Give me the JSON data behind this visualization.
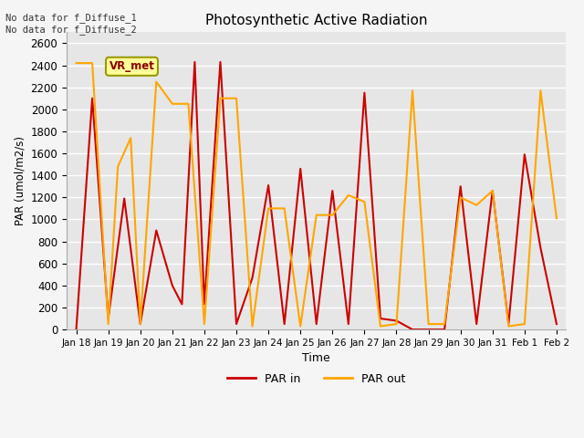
{
  "title": "Photosynthetic Active Radiation",
  "xlabel": "Time",
  "ylabel": "PAR (umol/m2/s)",
  "annotation_text": "No data for f_Diffuse_1\nNo data for f_Diffuse_2",
  "legend_label1": "PAR in",
  "legend_label2": "PAR out",
  "legend_box_label": "VR_met",
  "color_par_in": "#CC0000",
  "color_par_out": "#FFA500",
  "legend_box_facecolor": "#FFFF99",
  "legend_box_edgecolor": "#999900",
  "ylim": [
    0,
    2700
  ],
  "yticks": [
    0,
    200,
    400,
    600,
    800,
    1000,
    1200,
    1400,
    1600,
    1800,
    2000,
    2200,
    2400,
    2600
  ],
  "x_tick_labels": [
    "Jan 18",
    "Jan 19",
    "Jan 20",
    "Jan 21",
    "Jan 22",
    "Jan 23",
    "Jan 24",
    "Jan 25",
    "Jan 26",
    "Jan 27",
    "Jan 28",
    "Jan 29",
    "Jan 30",
    "Jan 31",
    "Feb 1",
    "Feb 2"
  ],
  "par_in_x": [
    0,
    0.5,
    1,
    1.5,
    2,
    2.5,
    3,
    3.3,
    3.7,
    4,
    4.5,
    5,
    5.5,
    6,
    6.5,
    7,
    7.5,
    8,
    8.5,
    9,
    9.5,
    10,
    10.5,
    11,
    11.5,
    12,
    12.5,
    13,
    13.5,
    14,
    14.5,
    15
  ],
  "par_in_y": [
    0,
    2100,
    100,
    1190,
    50,
    900,
    400,
    230,
    2430,
    230,
    2430,
    50,
    470,
    1310,
    50,
    1460,
    50,
    1260,
    50,
    2150,
    100,
    80,
    0,
    0,
    0,
    1300,
    50,
    1260,
    50,
    1590,
    740,
    50
  ],
  "par_out_x": [
    0,
    0.5,
    1,
    1.3,
    1.7,
    2,
    2.5,
    3,
    3.5,
    4,
    4.5,
    5,
    5.5,
    6,
    6.5,
    7,
    7.5,
    8,
    8.5,
    9,
    9.5,
    10,
    10.5,
    11,
    11.5,
    12,
    12.5,
    13,
    13.5,
    14,
    14.5,
    15
  ],
  "par_out_y": [
    2420,
    2420,
    50,
    1480,
    1740,
    50,
    2250,
    2050,
    2050,
    50,
    2100,
    2100,
    30,
    1100,
    1100,
    30,
    1040,
    1040,
    1220,
    1160,
    30,
    50,
    2170,
    50,
    50,
    1200,
    1130,
    1260,
    30,
    50,
    2170,
    1010
  ],
  "fig_facecolor": "#f5f5f5",
  "ax_facecolor": "#e6e6e6",
  "grid_color": "#ffffff",
  "figsize": [
    6.4,
    4.8
  ],
  "dpi": 100
}
